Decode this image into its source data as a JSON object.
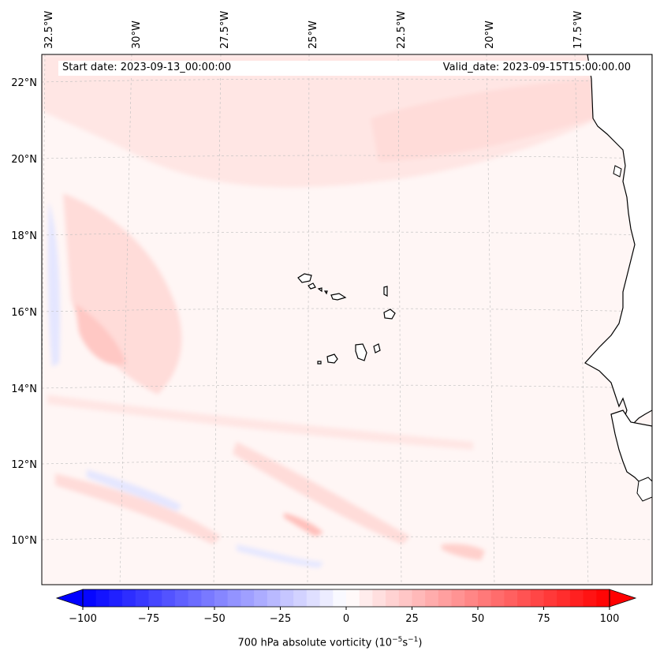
{
  "header": {
    "start_date": "Start date: 2023-09-13_00:00:00",
    "valid_date": "Valid_date: 2023-09-15T15:00:00.00"
  },
  "map": {
    "lon_labels": [
      "32.5°W",
      "30°W",
      "27.5°W",
      "25°W",
      "22.5°W",
      "20°W",
      "17.5°W"
    ],
    "lat_labels": [
      "22°N",
      "20°N",
      "18°N",
      "16°N",
      "14°N",
      "12°N",
      "10°N"
    ],
    "gridlines": true,
    "coastline_color": "#000000",
    "land_fill_color": "#ffffff"
  },
  "colorbar": {
    "title_main": "700 hPa absolute vorticity (10",
    "title_exp1": "−5",
    "title_mid": "s",
    "title_exp2": "−1",
    "title_end": ")",
    "ticks": [
      "−100",
      "−75",
      "−50",
      "−25",
      "0",
      "25",
      "50",
      "75",
      "100"
    ],
    "min": -100,
    "max": 100,
    "extend": "both",
    "colors": {
      "negative": "#0000ff",
      "zero": "#ffffff",
      "positive": "#ff0000"
    }
  }
}
